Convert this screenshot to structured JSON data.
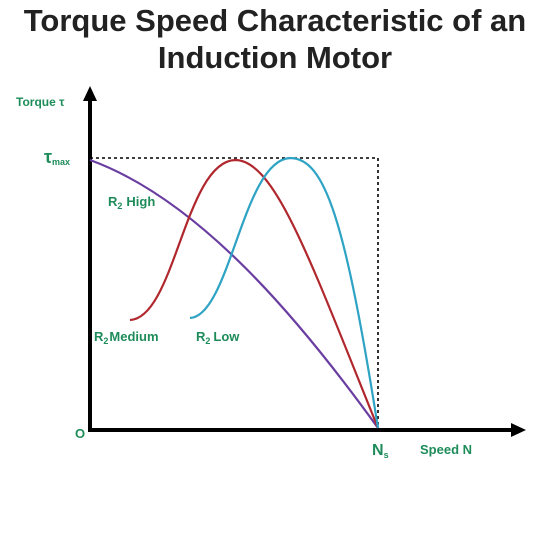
{
  "title": {
    "line1": "Torque Speed Characteristic of an",
    "line2": "Induction Motor"
  },
  "axes": {
    "y_label": "Torque τ",
    "x_label": "Speed N",
    "origin": "O",
    "tmax_symbol": "τ",
    "tmax_sub": "max",
    "ns_symbol": "N",
    "ns_sub": "s"
  },
  "curves": [
    {
      "id": "high",
      "r": "R",
      "sub": "2",
      "label": "High",
      "color": "#6a3ea1"
    },
    {
      "id": "medium",
      "r": "R",
      "sub": "2",
      "label": "Medium",
      "color": "#b0282e"
    },
    {
      "id": "low",
      "r": "R",
      "sub": "2",
      "label": "Low",
      "color": "#2ea3c4"
    }
  ],
  "colors": {
    "label_green": "#1e8c5a",
    "axis": "#000000",
    "title": "#222222"
  }
}
